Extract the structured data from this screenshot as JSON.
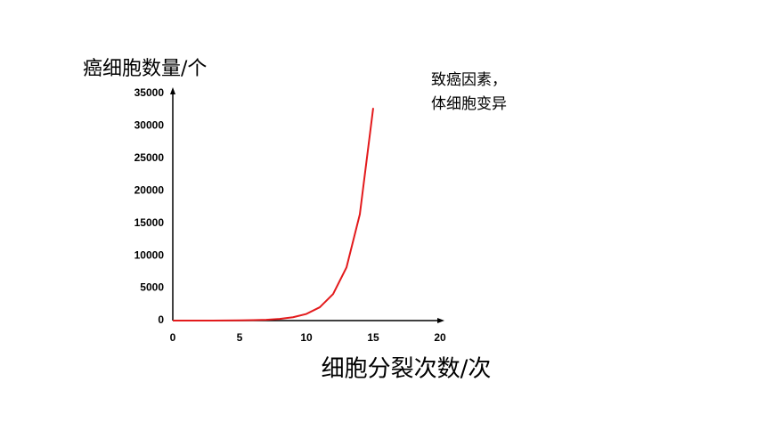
{
  "chart_data": {
    "type": "line",
    "y_label": "癌细胞数量/个",
    "x_label": "细胞分裂次数/次",
    "annotation": [
      "致癌因素，",
      "体细胞变异"
    ],
    "x": [
      0,
      1,
      2,
      3,
      4,
      5,
      6,
      7,
      8,
      9,
      10,
      11,
      12,
      13,
      14,
      15
    ],
    "values": [
      1,
      2,
      4,
      8,
      16,
      32,
      64,
      128,
      256,
      512,
      1024,
      2048,
      4096,
      8192,
      16384,
      32768
    ],
    "color": "#e31a1c",
    "xlim": [
      0,
      20
    ],
    "xticks": [
      0,
      5,
      10,
      15,
      20
    ],
    "ylim": [
      0,
      35000
    ],
    "yticks": [
      0,
      5000,
      10000,
      15000,
      20000,
      25000,
      30000,
      35000
    ],
    "grid": false
  }
}
